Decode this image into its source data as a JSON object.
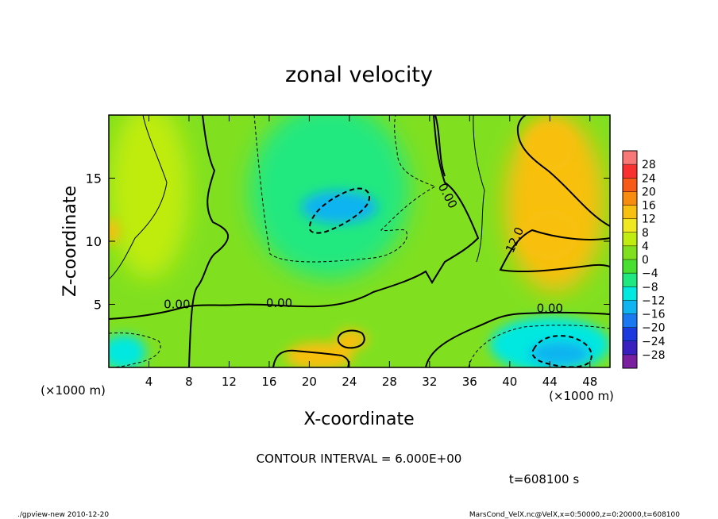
{
  "chart_data": {
    "type": "heatmap",
    "title": "zonal velocity",
    "xlabel": "X-coordinate",
    "ylabel": "Z-coordinate",
    "x_unit": "(×1000 m)",
    "x_unit_right": "(×1000 m)",
    "xlim": [
      0,
      50
    ],
    "ylim": [
      0,
      20
    ],
    "x_ticks": [
      4,
      8,
      12,
      16,
      20,
      24,
      28,
      32,
      36,
      40,
      44,
      48
    ],
    "y_ticks": [
      5,
      10,
      15
    ],
    "contour_interval_text": "CONTOUR INTERVAL = 6.000E+00",
    "time_text": "t=608100 s",
    "footer_left": "./gpview-new   2010-12-20",
    "footer_right": "MarsCond_VelX.nc@VelX,x=0:50000,z=0:20000,t=608100",
    "colorbar": {
      "levels": [
        -28,
        -24,
        -20,
        -16,
        -12,
        -8,
        -4,
        0,
        4,
        8,
        12,
        16,
        20,
        24,
        28
      ],
      "labels": [
        "28",
        "24",
        "20",
        "16",
        "12",
        "8",
        "4",
        "0",
        "−4",
        "−8",
        "−12",
        "−16",
        "−20",
        "−24",
        "−28"
      ],
      "colors": [
        "#7a1fa0",
        "#3a1fc0",
        "#1a3ae0",
        "#1a78f0",
        "#10b4f0",
        "#00e8e0",
        "#20e880",
        "#48e030",
        "#80e020",
        "#c0ec10",
        "#f0e820",
        "#f8c010",
        "#f88c10",
        "#f85a18",
        "#f83030",
        "#f87878"
      ]
    },
    "contour_labels": [
      {
        "text": "0.00",
        "x": 6.8,
        "z": 5.0,
        "angle": 0
      },
      {
        "text": "0.00",
        "x": 17,
        "z": 5.1,
        "angle": 0
      },
      {
        "text": "0.00",
        "x": 44,
        "z": 4.7,
        "angle": 0
      },
      {
        "text": "0.00",
        "x": 33.8,
        "z": 13.6,
        "angle": 62
      },
      {
        "text": "12.0",
        "x": 40.5,
        "z": 10.1,
        "angle": -65
      }
    ],
    "field_regions": [
      {
        "name": "background",
        "value": 2,
        "x": 25,
        "z": 10,
        "rx": 30,
        "rz": 12
      },
      {
        "name": "upper-left weak positive",
        "value": 4,
        "x": 4,
        "z": 14,
        "rx": 4,
        "rz": 7
      },
      {
        "name": "central negative region",
        "value": -6,
        "x": 22,
        "z": 14,
        "rx": 8,
        "rz": 7
      },
      {
        "name": "negative jet core",
        "value": -13,
        "x": 23,
        "z": 12.7,
        "rx": 3.8,
        "rz": 1.3
      },
      {
        "name": "upper-right positive region",
        "value": 12,
        "x": 44.5,
        "z": 13,
        "rx": 5,
        "rz": 7
      },
      {
        "name": "upper-right maximum",
        "value": 14,
        "x": 44,
        "z": 17.5,
        "rx": 2.6,
        "rz": 2
      },
      {
        "name": "mid-right maximum",
        "value": 14,
        "x": 44,
        "z": 10.5,
        "rx": 3,
        "rz": 2
      },
      {
        "name": "lower-center positive",
        "value": 12,
        "x": 21,
        "z": 0.9,
        "rx": 3.4,
        "rz": 1.1
      },
      {
        "name": "lower-center small maximum",
        "value": 12,
        "x": 24.2,
        "z": 2.2,
        "rx": 1.6,
        "rz": 0.8
      },
      {
        "name": "lower-right negative region",
        "value": -10,
        "x": 44,
        "z": 1.8,
        "rx": 6,
        "rz": 2.2
      },
      {
        "name": "lower-right minimum",
        "value": -16,
        "x": 45,
        "z": 1.1,
        "rx": 3,
        "rz": 1
      },
      {
        "name": "lower-left negative",
        "value": -9,
        "x": 1.5,
        "z": 1.2,
        "rx": 2.2,
        "rz": 1.4
      },
      {
        "name": "left-edge positive",
        "value": 12,
        "x": 0.3,
        "z": 10.8,
        "rx": 0.8,
        "rz": 1
      }
    ]
  }
}
